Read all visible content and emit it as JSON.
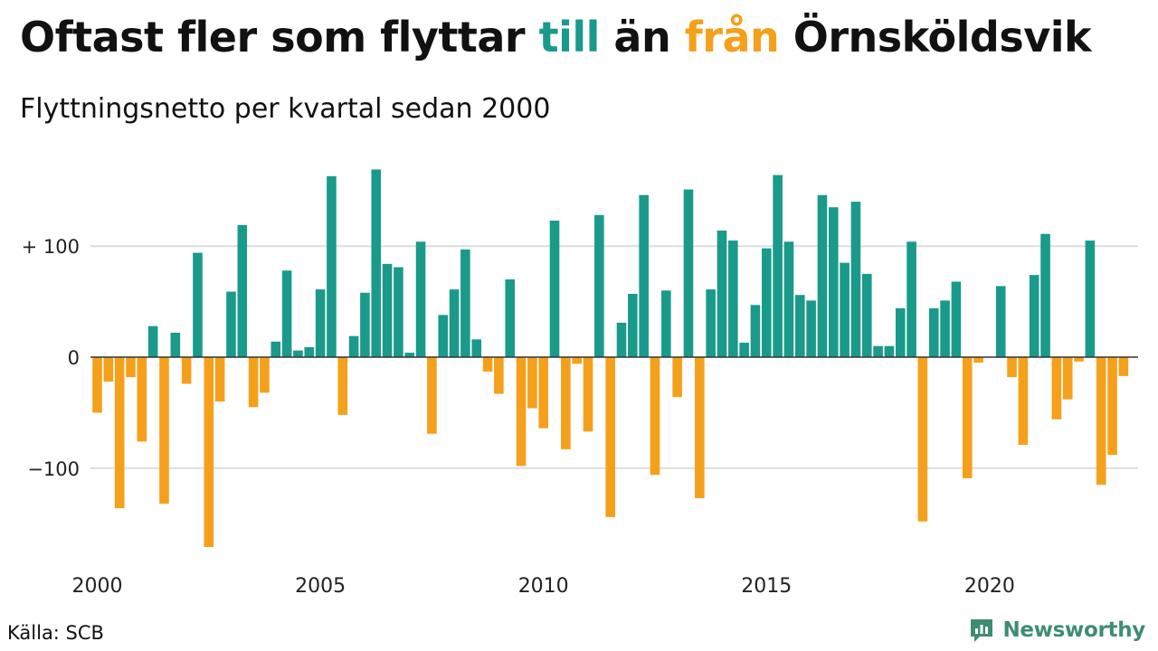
{
  "header": {
    "title_part1": "Oftast fler som flyttar ",
    "title_till": "till",
    "title_part2": " än ",
    "title_fran": "från",
    "title_part3": " Örnsköldsvik",
    "subtitle": "Flyttningsnetto per kvartal sedan 2000"
  },
  "colors": {
    "positive": "#1a9a8a",
    "negative": "#f5a01b",
    "grid": "#dddddd",
    "zero_line": "#333333",
    "brand": "#3f8c74"
  },
  "chart_data": {
    "type": "bar",
    "title": "Oftast fler som flyttar till än från Örnsköldsvik",
    "subtitle": "Flyttningsnetto per kvartal sedan 2000",
    "x_start": "2000 Q1",
    "frequency": "quarterly",
    "ylim": [
      -185,
      185
    ],
    "y_ticks": [
      {
        "value": 100,
        "label": "+ 100"
      },
      {
        "value": 0,
        "label": "0"
      },
      {
        "value": -100,
        "label": "−100"
      }
    ],
    "x_ticks": [
      {
        "year": 2000,
        "label": "2000"
      },
      {
        "year": 2005,
        "label": "2005"
      },
      {
        "year": 2010,
        "label": "2010"
      },
      {
        "year": 2015,
        "label": "2015"
      },
      {
        "year": 2020,
        "label": "2020"
      }
    ],
    "grid": true,
    "values": [
      -50,
      -22,
      -136,
      -18,
      -76,
      28,
      -132,
      22,
      -24,
      94,
      -171,
      -40,
      59,
      119,
      -45,
      -32,
      14,
      78,
      6,
      9,
      61,
      163,
      -52,
      19,
      58,
      169,
      84,
      81,
      4,
      104,
      -69,
      38,
      61,
      97,
      16,
      -13,
      -33,
      70,
      -98,
      -46,
      -64,
      123,
      -83,
      -6,
      -67,
      128,
      -144,
      31,
      57,
      146,
      -106,
      60,
      -36,
      151,
      -127,
      61,
      114,
      105,
      13,
      47,
      98,
      164,
      104,
      56,
      51,
      146,
      135,
      85,
      140,
      75,
      10,
      10,
      44,
      104,
      -148,
      44,
      51,
      68,
      -109,
      -5,
      0,
      64,
      -18,
      -79,
      74,
      111,
      -56,
      -38,
      -4,
      105,
      -115,
      -88,
      -17
    ]
  },
  "footer": {
    "source": "Källa: SCB",
    "brand": "Newsworthy"
  }
}
